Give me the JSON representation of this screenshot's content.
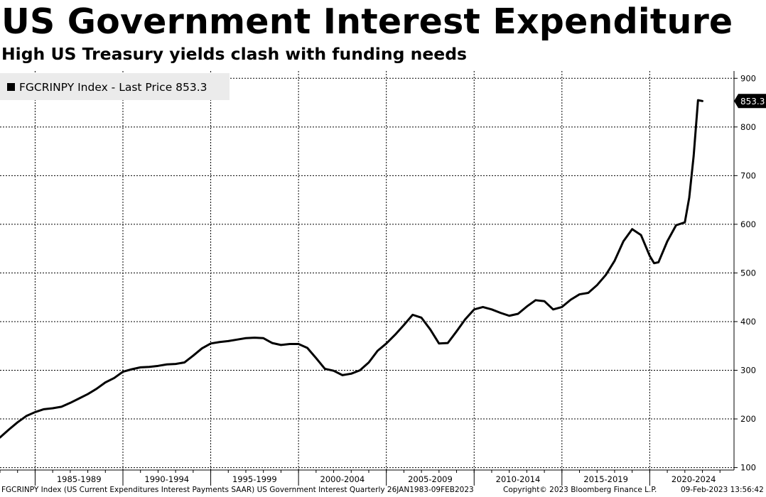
{
  "header": {
    "title": "US Government Interest Expenditure",
    "subtitle": "High US Treasury yields clash with funding needs"
  },
  "footer": {
    "source": "FGCRINPY Index (US Current Expenditures Interest Payments SAAR) US Government Interest  Quarterly 26JAN1983-09FEB2023",
    "copyright": "Copyright© 2023 Bloomberg Finance L.P.",
    "timestamp": "09-Feb-2023 13:56:42"
  },
  "colors": {
    "line": "#000000",
    "grid": "#000000",
    "legend_bg": "#ebebeb",
    "price_tag": "#000000"
  },
  "chart_data": {
    "type": "line",
    "legend": {
      "label": "FGCRINPY Index - Last Price 853.3",
      "placement": "top-left"
    },
    "last_price_label": "853.3",
    "last_value": 853.3,
    "ylim": [
      95,
      915
    ],
    "yticks": [
      100,
      200,
      300,
      400,
      500,
      600,
      700,
      800,
      900
    ],
    "xlim": [
      1983.0,
      2024.8
    ],
    "x_gridlines": [
      1985,
      1990,
      1995,
      2000,
      2005,
      2010,
      2015,
      2020
    ],
    "x_tick_labels": [
      {
        "label": "1985-1989",
        "x": 1987.5
      },
      {
        "label": "1990-1994",
        "x": 1992.5
      },
      {
        "label": "1995-1999",
        "x": 1997.5
      },
      {
        "label": "2000-2004",
        "x": 2002.5
      },
      {
        "label": "2005-2009",
        "x": 2007.5
      },
      {
        "label": "2010-2014",
        "x": 2012.5
      },
      {
        "label": "2015-2019",
        "x": 2017.5
      },
      {
        "label": "2020-2024",
        "x": 2022.5
      }
    ],
    "grid": true,
    "series": [
      {
        "x": [
          1983.0,
          1983.5,
          1984.0,
          1984.5,
          1985.0,
          1985.5,
          1986.0,
          1986.5,
          1987.0,
          1987.5,
          1988.0,
          1988.5,
          1989.0,
          1989.5,
          1990.0,
          1990.5,
          1991.0,
          1991.5,
          1992.0,
          1992.5,
          1993.0,
          1993.5,
          1994.0,
          1994.5,
          1995.0,
          1995.5,
          1996.0,
          1996.5,
          1997.0,
          1997.5,
          1998.0,
          1998.5,
          1999.0,
          1999.5,
          2000.0,
          2000.5,
          2001.0,
          2001.5,
          2002.0,
          2002.5,
          2003.0,
          2003.5,
          2004.0,
          2004.5,
          2005.0,
          2005.5,
          2006.0,
          2006.5,
          2007.0,
          2007.5,
          2008.0,
          2008.5,
          2009.0,
          2009.5,
          2010.0,
          2010.5,
          2011.0,
          2011.5,
          2012.0,
          2012.5,
          2013.0,
          2013.5,
          2014.0,
          2014.5,
          2015.0,
          2015.5,
          2016.0,
          2016.5,
          2017.0,
          2017.5,
          2018.0,
          2018.5,
          2019.0,
          2019.5,
          2020.0,
          2020.25,
          2020.5,
          2021.0,
          2021.5,
          2022.0,
          2022.25,
          2022.5,
          2022.75,
          2023.0
        ],
        "y": [
          162,
          178,
          193,
          206,
          214,
          220,
          222,
          225,
          233,
          242,
          251,
          262,
          275,
          284,
          297,
          302,
          306,
          307,
          309,
          312,
          313,
          316,
          330,
          345,
          355,
          358,
          360,
          363,
          366,
          367,
          366,
          356,
          352,
          354,
          354,
          346,
          325,
          303,
          299,
          290,
          293,
          300,
          316,
          340,
          355,
          373,
          393,
          414,
          408,
          384,
          355,
          356,
          380,
          405,
          425,
          430,
          425,
          418,
          412,
          416,
          431,
          444,
          442,
          425,
          430,
          445,
          456,
          459,
          475,
          496,
          525,
          565,
          590,
          578,
          535,
          520,
          522,
          565,
          598,
          604,
          655,
          740,
          855,
          853.3
        ]
      }
    ]
  }
}
